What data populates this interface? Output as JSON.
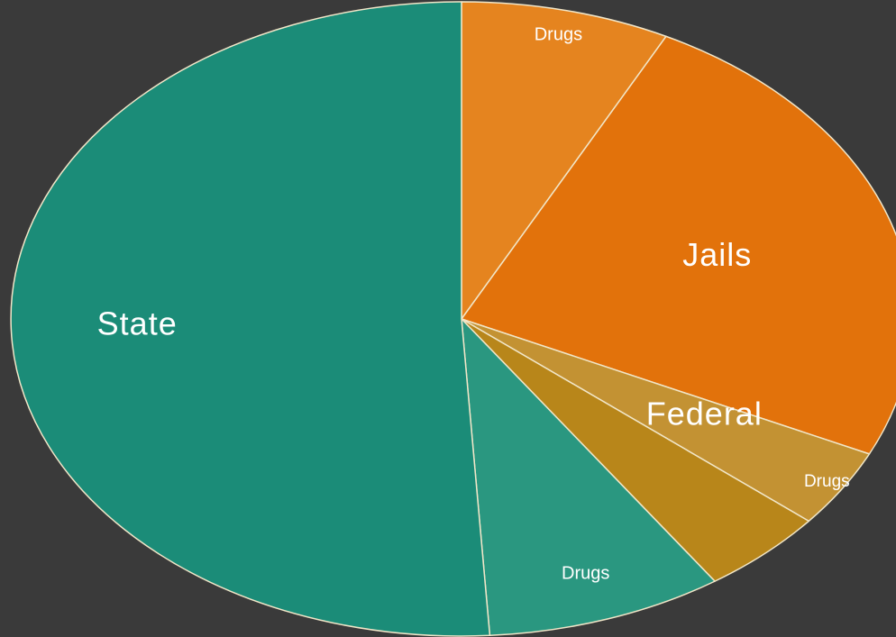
{
  "chart_data": {
    "type": "pie",
    "title": "",
    "start_angle_deg": 0,
    "direction": "clockwise",
    "slices": [
      {
        "label": "Drugs",
        "value": 7.5,
        "color": "#e5841f",
        "size": "small"
      },
      {
        "label": "Jails",
        "value": 24.5,
        "color": "#e2720b",
        "size": "large"
      },
      {
        "label": "Drugs",
        "value": 4.0,
        "color": "#c39233",
        "size": "small"
      },
      {
        "label": "Federal",
        "value": 4.5,
        "color": "#b8861a",
        "size": "large"
      },
      {
        "label": "Drugs",
        "value": 8.5,
        "color": "#2a9780",
        "size": "small"
      },
      {
        "label": "State",
        "value": 51.0,
        "color": "#1b8c78",
        "size": "large"
      }
    ]
  }
}
